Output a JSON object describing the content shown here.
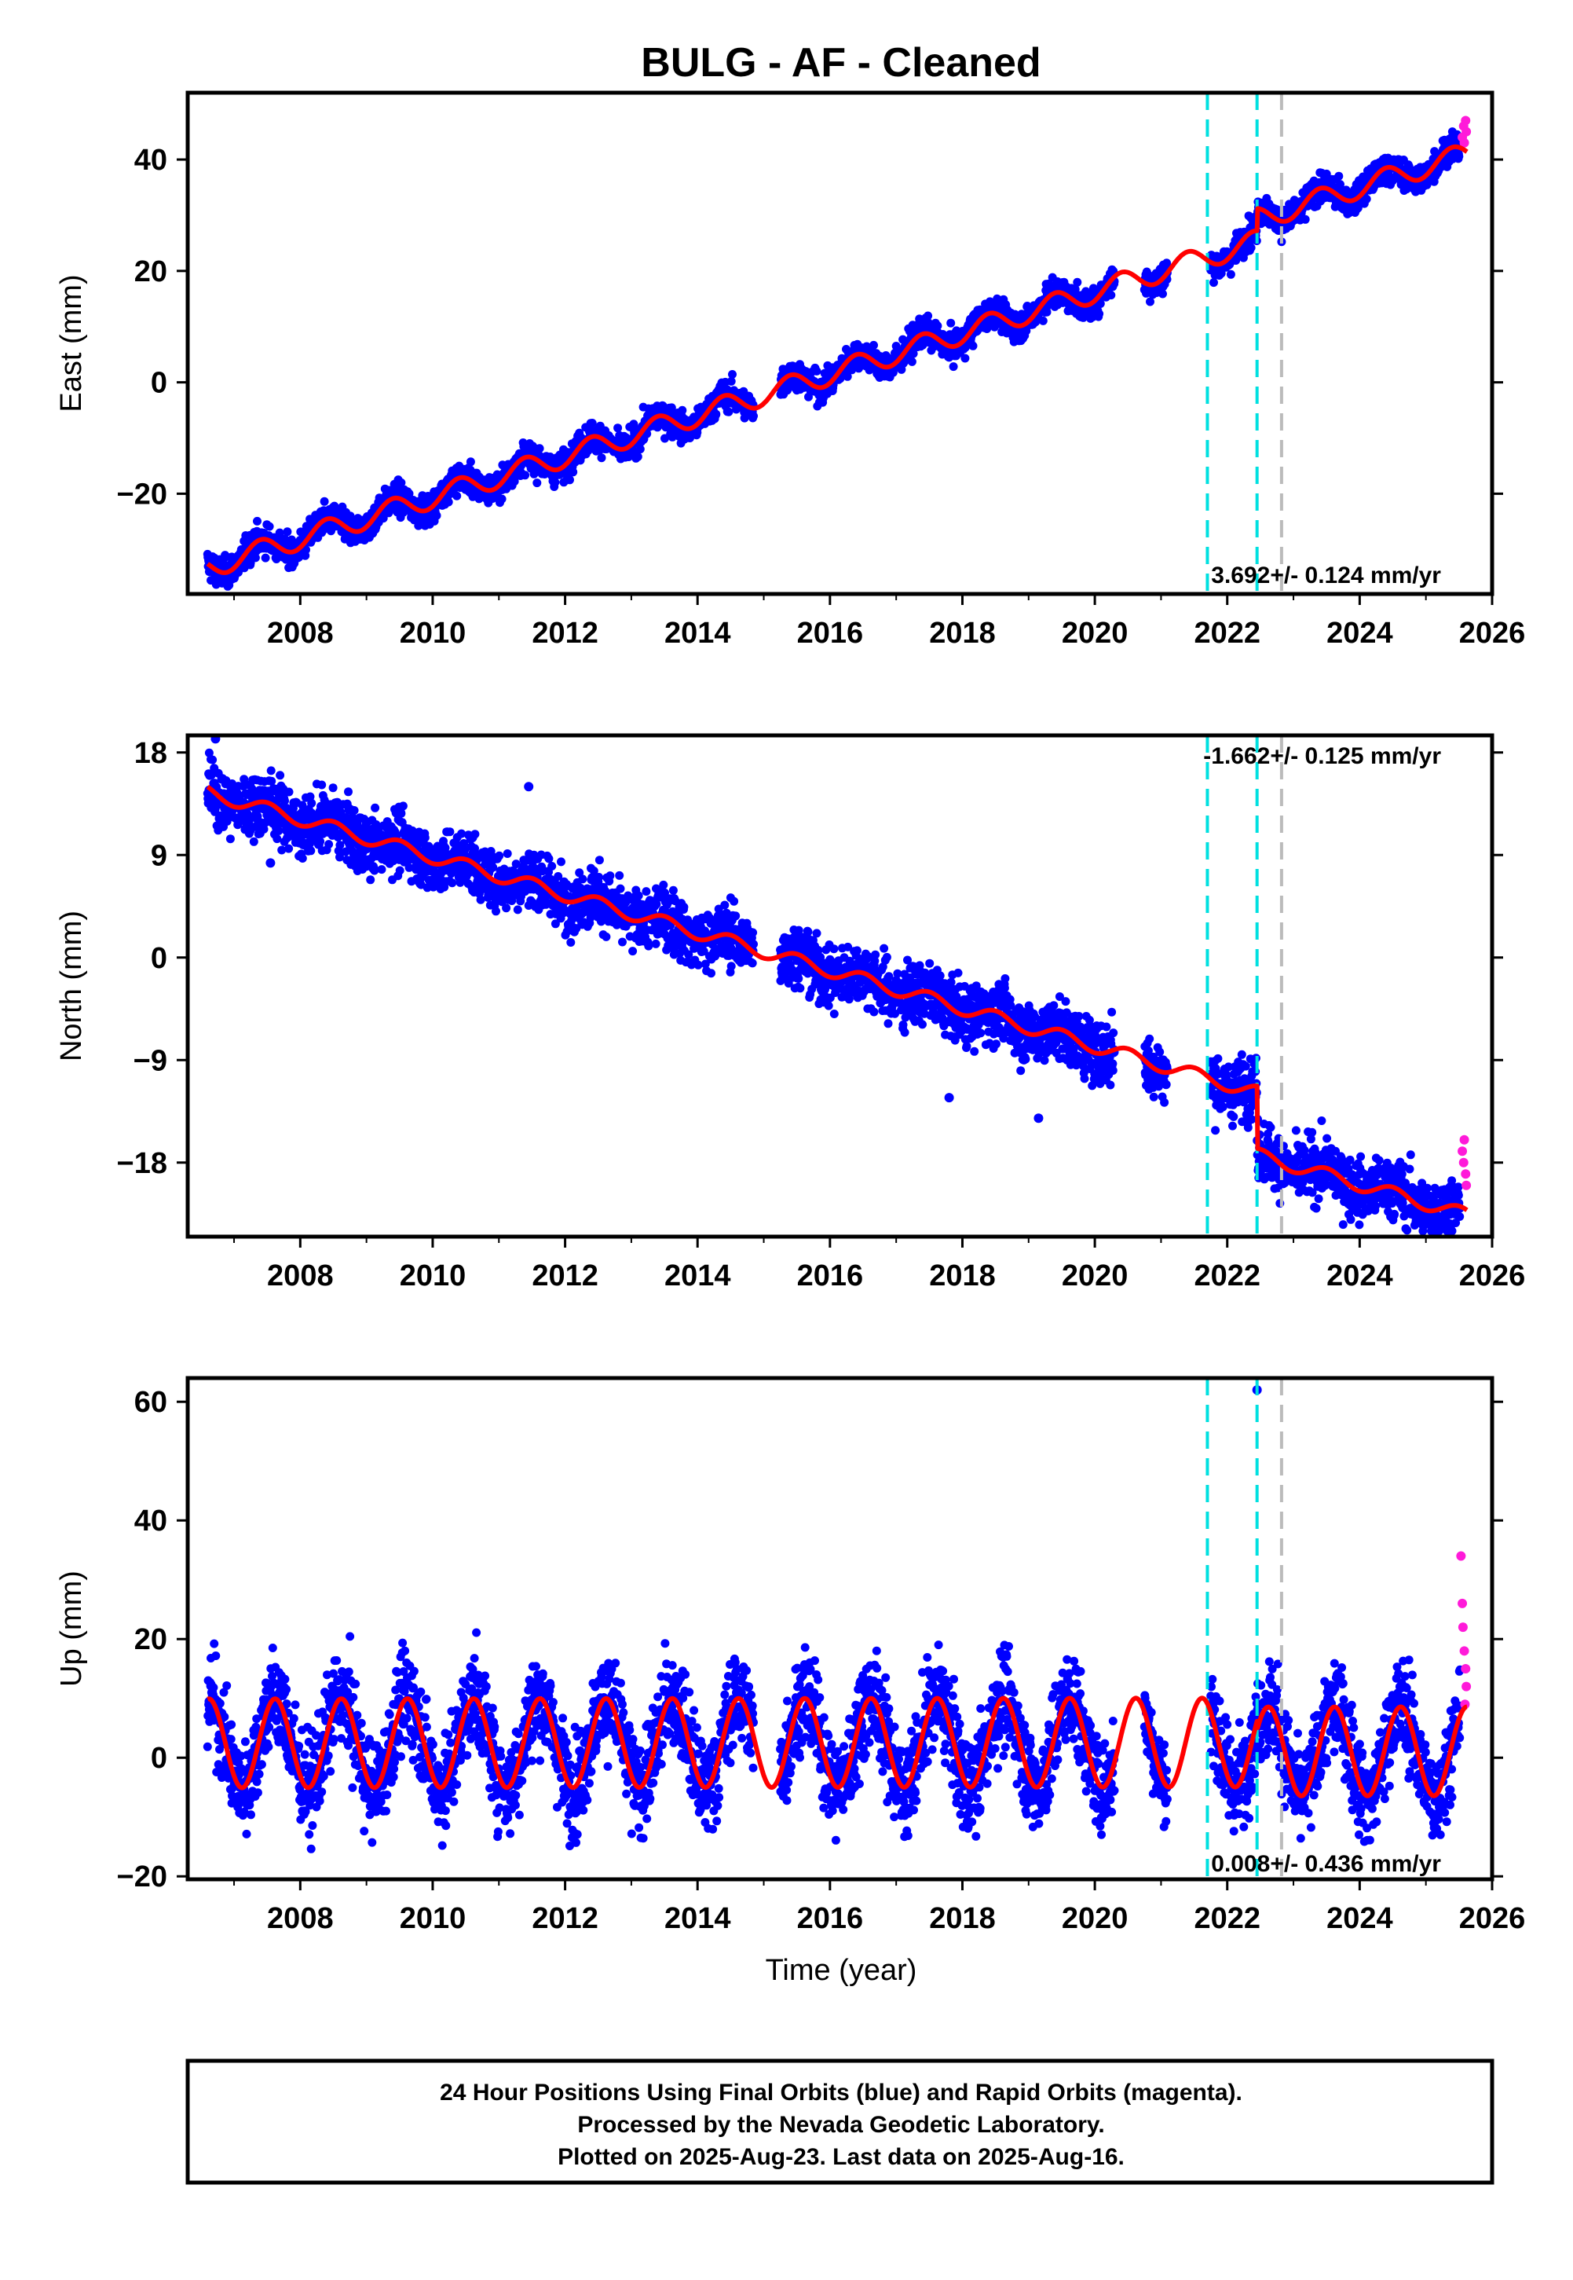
{
  "page": {
    "title": "BULG  - AF - Cleaned",
    "xlabel": "Time (year)",
    "footer": [
      "24 Hour Positions Using Final Orbits (blue) and Rapid Orbits (magenta).",
      "Processed by the Nevada Geodetic Laboratory.",
      "Plotted on 2025-Aug-23. Last data on 2025-Aug-16."
    ]
  },
  "colors": {
    "final_orbits": "#0000ff",
    "rapid_orbits": "#ff1ad9",
    "model": "#ff0000",
    "event_cyan": "#00e0e0",
    "event_gray": "#bbbbbb",
    "axis": "#000000"
  },
  "chart_data": [
    {
      "type": "scatter",
      "panel": "east",
      "ylabel": "East (mm)",
      "xlim": [
        2006.3,
        2026.0
      ],
      "ylim": [
        -38,
        52
      ],
      "xticks": [
        2008,
        2010,
        2012,
        2014,
        2016,
        2018,
        2020,
        2022,
        2024,
        2026
      ],
      "yticks": [
        -20,
        0,
        20,
        40
      ],
      "rate": "3.692+/- 0.124 mm/yr",
      "event_lines": [
        {
          "x": 2021.7,
          "color": "cyan"
        },
        {
          "x": 2022.45,
          "color": "cyan"
        },
        {
          "x": 2022.82,
          "color": "gray"
        }
      ],
      "data_start": 2006.6,
      "data_end": 2025.62,
      "gaps": [
        [
          2014.85,
          2015.25
        ],
        [
          2020.3,
          2020.75
        ],
        [
          2021.1,
          2021.75
        ]
      ],
      "rapid_start": 2025.52,
      "trend": {
        "x0": 2016.0,
        "y0": 1.5,
        "slope": 3.692
      },
      "offsets": [
        {
          "x": 2022.45,
          "dy": 4.0
        }
      ],
      "seasonal": {
        "amplitude": 2.0,
        "phase_peak": 0.4
      },
      "scatter_sd": 1.3,
      "outlier_points": [],
      "rapid_points": [
        [
          2025.55,
          44
        ],
        [
          2025.57,
          46
        ],
        [
          2025.58,
          43
        ],
        [
          2025.6,
          47
        ],
        [
          2025.61,
          45
        ]
      ],
      "legend": []
    },
    {
      "type": "scatter",
      "panel": "north",
      "ylabel": "North (mm)",
      "xlim": [
        2006.3,
        2026.0
      ],
      "ylim": [
        -24.5,
        19.5
      ],
      "xticks": [
        2008,
        2010,
        2012,
        2014,
        2016,
        2018,
        2020,
        2022,
        2024,
        2026
      ],
      "yticks": [
        -18,
        -9,
        0,
        9,
        18
      ],
      "rate": "-1.662+/- 0.125 mm/yr",
      "event_lines": [
        {
          "x": 2021.7,
          "color": "cyan"
        },
        {
          "x": 2022.45,
          "color": "cyan"
        },
        {
          "x": 2022.82,
          "color": "gray"
        }
      ],
      "data_start": 2006.6,
      "data_end": 2025.62,
      "gaps": [
        [
          2014.85,
          2015.25
        ],
        [
          2020.3,
          2020.75
        ],
        [
          2021.1,
          2021.75
        ]
      ],
      "rapid_start": 2025.52,
      "trend": {
        "x0": 2006.6,
        "y0": 14.5,
        "slope": -1.662
      },
      "offsets": [
        {
          "x": 2022.45,
          "dy": -5.5
        }
      ],
      "seasonal": {
        "amplitude": 0.6,
        "phase_peak": 0.5
      },
      "scatter_sd": 1.3,
      "outlier_points": [
        [
          2006.72,
          19.2
        ],
        [
          2007.55,
          8.3
        ],
        [
          2011.45,
          15.0
        ],
        [
          2017.8,
          -12.3
        ],
        [
          2019.15,
          -14.1
        ]
      ],
      "rapid_points": [
        [
          2025.55,
          -17
        ],
        [
          2025.57,
          -18
        ],
        [
          2025.58,
          -16
        ],
        [
          2025.6,
          -19
        ],
        [
          2025.61,
          -20
        ]
      ],
      "legend": []
    },
    {
      "type": "scatter",
      "panel": "up",
      "ylabel": "Up (mm)",
      "xlim": [
        2006.3,
        2026.0
      ],
      "ylim": [
        -20.5,
        64
      ],
      "xticks": [
        2008,
        2010,
        2012,
        2014,
        2016,
        2018,
        2020,
        2022,
        2024,
        2026
      ],
      "yticks": [
        -20,
        0,
        20,
        40,
        60
      ],
      "rate": "0.008+/- 0.436 mm/yr",
      "event_lines": [
        {
          "x": 2021.7,
          "color": "cyan"
        },
        {
          "x": 2022.45,
          "color": "cyan"
        },
        {
          "x": 2022.82,
          "color": "gray"
        }
      ],
      "data_start": 2006.6,
      "data_end": 2025.62,
      "gaps": [
        [
          2014.85,
          2015.25
        ],
        [
          2020.3,
          2020.75
        ],
        [
          2021.1,
          2021.75
        ]
      ],
      "rapid_start": 2025.52,
      "trend": {
        "x0": 2016.0,
        "y0": 2.5,
        "slope": 0.008
      },
      "offsets": [
        {
          "x": 2022.45,
          "dy": -1.5
        }
      ],
      "seasonal": {
        "amplitude": 7.5,
        "phase_peak": 0.62
      },
      "scatter_sd": 4.0,
      "outlier_points": [
        [
          2022.45,
          62.0
        ]
      ],
      "rapid_points": [
        [
          2025.53,
          34
        ],
        [
          2025.55,
          26
        ],
        [
          2025.56,
          22
        ],
        [
          2025.58,
          18
        ],
        [
          2025.6,
          15
        ],
        [
          2025.61,
          12
        ],
        [
          2025.59,
          9
        ]
      ],
      "legend": []
    }
  ]
}
